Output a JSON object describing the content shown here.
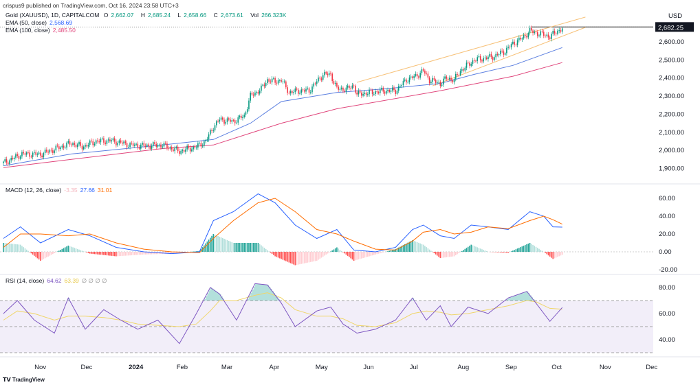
{
  "header": {
    "published": "crispus9 published on TradingView.com, Oct 16, 2024 23:58 UTC+3"
  },
  "legend": {
    "symbol": "Gold (XAUUSD), 1D, CAPITALCOM",
    "o_label": "O",
    "o": "2,662.07",
    "h_label": "H",
    "h": "2,685.24",
    "l_label": "L",
    "l": "2,658.66",
    "c_label": "C",
    "c": "2,673.61",
    "vol_label": "Vol",
    "vol": "266.323K",
    "ema50_label": "EMA (50, close)",
    "ema50": "2,568.69",
    "ema100_label": "EMA (100, close)",
    "ema100": "2,485.50",
    "macd_label": "MACD (12, 26, close)",
    "macd_hist": "-3.35",
    "macd_val": "27.66",
    "macd_signal": "31.01",
    "rsi_label": "RSI (14, close)",
    "rsi_val": "64.62",
    "rsi_ma": "63.39",
    "rsi_extra": "∅ ∅ ∅ ∅"
  },
  "footer": {
    "brand": "TradingView"
  },
  "colors": {
    "up": "#089981",
    "down": "#f23645",
    "ema50": "#5b7fe0",
    "ema100": "#e0457b",
    "macd": "#2962ff",
    "signal": "#ff6d00",
    "rsi": "#7e57c2",
    "rsi_ma": "#f0d66a",
    "channel": "#f7c27a"
  },
  "chart_data": [
    {
      "type": "candlestick",
      "title": "Gold (XAUUSD), 1D",
      "x_unit": "days since 2023-10-19",
      "currency": "USD",
      "last_price_label": "2,682.25",
      "last_price": 2682.25,
      "yticks": [
        "2,600.00",
        "2,500.00",
        "2,400.00",
        "2,300.00",
        "2,200.00",
        "2,100.00",
        "2,000.00",
        "1,900.00"
      ],
      "ytick_values": [
        2600,
        2500,
        2400,
        2300,
        2200,
        2100,
        2000,
        1900
      ],
      "xticks": [
        "Nov",
        "Dec",
        "2024",
        "Feb",
        "Mar",
        "Apr",
        "May",
        "Jun",
        "Jul",
        "Aug",
        "Sep",
        "Oct",
        "Nov",
        "Dec"
      ],
      "xtick_days": [
        13,
        43,
        74,
        105,
        134,
        165,
        195,
        226,
        256,
        287,
        318,
        348,
        379,
        409
      ],
      "close": {
        "x": [
          0,
          12,
          24,
          44,
          51,
          60,
          69,
          72,
          82,
          91,
          103,
          114,
          125,
          131,
          136,
          140,
          149,
          156,
          160,
          167,
          171,
          176,
          180,
          185,
          192,
          198,
          207,
          212,
          216,
          223,
          227,
          229,
          238,
          247,
          254,
          261,
          267,
          272,
          276,
          283,
          287,
          292,
          296,
          305,
          312,
          318,
          325,
          330,
          336,
          341,
          345,
          350,
          354,
          359,
          362
        ],
        "y": [
          1930,
          1980,
          1978,
          2040,
          2020,
          2050,
          2054,
          2050,
          2030,
          2025,
          2030,
          1995,
          2020,
          2050,
          2130,
          2170,
          2160,
          2190,
          2300,
          2340,
          2390,
          2380,
          2390,
          2320,
          2330,
          2330,
          2420,
          2420,
          2340,
          2340,
          2360,
          2310,
          2320,
          2330,
          2330,
          2390,
          2410,
          2440,
          2390,
          2370,
          2400,
          2390,
          2440,
          2500,
          2510,
          2520,
          2550,
          2590,
          2620,
          2660,
          2650,
          2640,
          2630,
          2660,
          2673.61
        ]
      },
      "ema50": {
        "x": [
          0,
          44,
          103,
          136,
          160,
          180,
          216,
          247,
          283,
          305,
          330,
          362
        ],
        "y": [
          1915,
          1980,
          2030,
          2060,
          2150,
          2270,
          2320,
          2340,
          2370,
          2420,
          2470,
          2568.69
        ]
      },
      "ema100": {
        "x": [
          0,
          44,
          103,
          136,
          180,
          216,
          283,
          330,
          362
        ],
        "y": [
          1905,
          1950,
          2010,
          2030,
          2150,
          2230,
          2330,
          2410,
          2485.5
        ]
      },
      "channel_upper": {
        "x": [
          229,
          377
        ],
        "y": [
          2376,
          2737
        ]
      },
      "channel_lower": {
        "x": [
          278,
          377
        ],
        "y": [
          2357,
          2680
        ]
      }
    },
    {
      "type": "line",
      "title": "MACD (12, 26, close)",
      "yticks": [
        "60.00",
        "40.00",
        "20.00",
        "0.00",
        "-20.00"
      ],
      "ytick_values": [
        60,
        40,
        20,
        0,
        -20
      ],
      "x": [
        0,
        11,
        24,
        42,
        56,
        73,
        91,
        109,
        127,
        136,
        149,
        165,
        176,
        189,
        203,
        216,
        227,
        241,
        254,
        265,
        272,
        283,
        292,
        303,
        314,
        327,
        341,
        350,
        356,
        362
      ],
      "macd": [
        15,
        28,
        10,
        25,
        18,
        5,
        0,
        -2,
        0,
        35,
        45,
        65,
        55,
        30,
        15,
        25,
        2,
        0,
        5,
        25,
        30,
        18,
        15,
        30,
        28,
        25,
        45,
        40,
        28,
        27.66
      ],
      "signal": [
        5,
        20,
        20,
        18,
        20,
        10,
        3,
        0,
        -1,
        15,
        35,
        55,
        60,
        45,
        25,
        20,
        12,
        3,
        2,
        12,
        22,
        25,
        20,
        22,
        28,
        26,
        35,
        40,
        36,
        31.01
      ]
    },
    {
      "type": "line",
      "title": "RSI (14, close)",
      "yticks": [
        "80.00",
        "60.00",
        "40.00"
      ],
      "ytick_values": [
        80,
        60,
        40
      ],
      "bands": [
        70,
        50,
        30
      ],
      "x": [
        0,
        9,
        20,
        33,
        42,
        53,
        65,
        76,
        87,
        100,
        114,
        125,
        134,
        140,
        151,
        163,
        171,
        180,
        189,
        203,
        212,
        220,
        229,
        241,
        254,
        265,
        274,
        283,
        290,
        301,
        314,
        327,
        339,
        345,
        354,
        362
      ],
      "rsi": [
        60,
        70,
        55,
        45,
        72,
        48,
        63,
        55,
        48,
        55,
        37,
        60,
        80,
        75,
        55,
        83,
        82,
        68,
        50,
        62,
        65,
        52,
        45,
        48,
        55,
        72,
        55,
        66,
        50,
        65,
        60,
        72,
        77,
        68,
        54,
        64.62
      ],
      "rsi_ma": [
        55,
        62,
        60,
        55,
        58,
        58,
        57,
        55,
        52,
        51,
        50,
        52,
        62,
        70,
        70,
        74,
        76,
        72,
        63,
        58,
        58,
        56,
        51,
        50,
        53,
        60,
        62,
        61,
        59,
        60,
        63,
        66,
        70,
        69,
        64,
        63.39
      ]
    }
  ]
}
